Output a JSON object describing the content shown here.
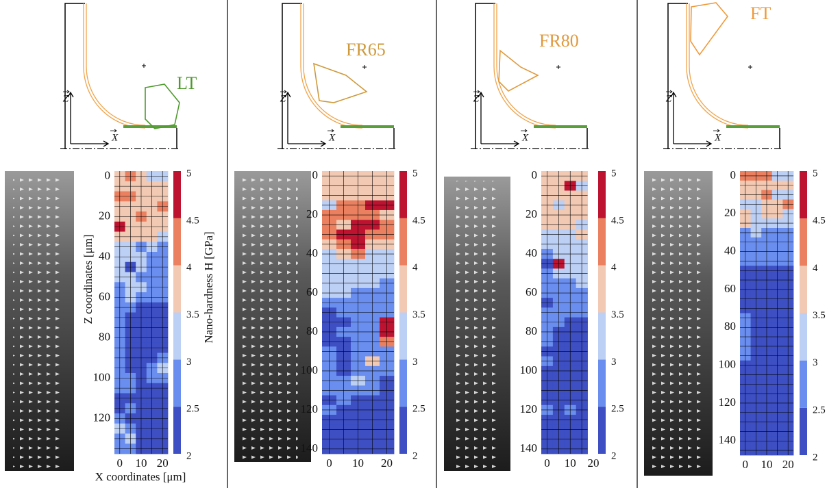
{
  "symbols": {
    "z": "Z",
    "x": "X"
  },
  "chart_data": [
    {
      "type": "heatmap",
      "tool_label": "LT",
      "label_color": "#4e9a2c",
      "ylabel": "Z coordinates [μm]",
      "xlabel": "X coordinates [μm]",
      "colorbar_label": "Nano-hardness H [GPa]",
      "x": [
        0,
        5,
        10,
        15,
        20
      ],
      "z": [
        0,
        5,
        10,
        15,
        20,
        25,
        30,
        35,
        40,
        45,
        50,
        55,
        60,
        65,
        70,
        75,
        80,
        85,
        90,
        95,
        100,
        105,
        110,
        115,
        120,
        125,
        130,
        135
      ],
      "values": [
        [
          3.7,
          4.2,
          3.7,
          3.2,
          3.2
        ],
        [
          3.7,
          3.7,
          3.7,
          3.7,
          3.7
        ],
        [
          4.2,
          4.2,
          3.7,
          3.7,
          3.7
        ],
        [
          3.7,
          3.7,
          3.7,
          3.7,
          4.2
        ],
        [
          3.7,
          3.7,
          4.2,
          3.7,
          3.7
        ],
        [
          4.7,
          3.7,
          3.7,
          3.7,
          3.7
        ],
        [
          3.7,
          3.7,
          3.7,
          3.7,
          3.2
        ],
        [
          3.2,
          3.2,
          2.7,
          3.2,
          2.7
        ],
        [
          3.2,
          3.2,
          3.2,
          2.7,
          2.7
        ],
        [
          3.2,
          2.2,
          3.2,
          2.7,
          2.7
        ],
        [
          3.2,
          3.2,
          2.7,
          2.7,
          2.7
        ],
        [
          2.7,
          3.2,
          3.2,
          2.7,
          2.7
        ],
        [
          2.7,
          3.2,
          2.7,
          2.7,
          2.7
        ],
        [
          2.7,
          2.7,
          2.2,
          2.2,
          2.2
        ],
        [
          2.7,
          2.2,
          2.2,
          2.2,
          2.2
        ],
        [
          2.7,
          2.2,
          2.2,
          2.2,
          2.2
        ],
        [
          2.7,
          2.2,
          2.2,
          2.2,
          2.2
        ],
        [
          2.7,
          2.2,
          2.2,
          2.2,
          2.2
        ],
        [
          2.7,
          2.2,
          2.2,
          2.2,
          2.7
        ],
        [
          2.7,
          2.2,
          2.2,
          2.7,
          3.2
        ],
        [
          2.7,
          2.7,
          2.2,
          2.7,
          2.7
        ],
        [
          2.7,
          2.7,
          2.2,
          2.2,
          2.2
        ],
        [
          2.2,
          2.2,
          2.2,
          2.2,
          2.2
        ],
        [
          2.2,
          2.7,
          2.2,
          2.2,
          2.2
        ],
        [
          2.7,
          2.2,
          2.2,
          2.2,
          2.2
        ],
        [
          3.2,
          2.7,
          2.2,
          2.2,
          2.2
        ],
        [
          2.7,
          3.2,
          2.2,
          2.2,
          2.2
        ],
        [
          2.7,
          2.7,
          2.2,
          2.2,
          2.2
        ]
      ],
      "xlim": [
        -2.5,
        22.5
      ],
      "ylim": [
        -2.5,
        137.5
      ],
      "xticks": [
        0,
        10,
        20
      ],
      "yticks": [
        0,
        20,
        40,
        60,
        80,
        100,
        120
      ],
      "colorbar": {
        "bounds": [
          2,
          2.5,
          3,
          3.5,
          4,
          4.5,
          5
        ],
        "colors": [
          "#3d4fc3",
          "#6a8eef",
          "#bccff4",
          "#f2c9b3",
          "#ea8060",
          "#bd1331"
        ],
        "ticks": [
          2,
          2.5,
          3,
          3.5,
          4,
          4.5,
          5
        ]
      }
    },
    {
      "type": "heatmap",
      "tool_label": "FR65",
      "label_color": "#cf9a3c",
      "x": [
        0,
        5,
        10,
        15,
        20
      ],
      "z": [
        0,
        5,
        10,
        15,
        20,
        25,
        30,
        35,
        40,
        45,
        50,
        55,
        60,
        65,
        70,
        75,
        80,
        85,
        90,
        95,
        100,
        105,
        110,
        115,
        120,
        125,
        130,
        135,
        140
      ],
      "values": [
        [
          3.7,
          3.7,
          3.7,
          3.7,
          3.7
        ],
        [
          3.7,
          3.7,
          3.7,
          3.7,
          3.7
        ],
        [
          3.7,
          3.7,
          3.7,
          3.7,
          3.7
        ],
        [
          3.2,
          4.2,
          4.2,
          4.7,
          4.7
        ],
        [
          4.2,
          4.2,
          4.2,
          4.2,
          3.7
        ],
        [
          4.2,
          3.7,
          4.7,
          4.7,
          4.2
        ],
        [
          4.2,
          4.7,
          4.7,
          4.2,
          4.2
        ],
        [
          3.7,
          4.2,
          4.7,
          3.7,
          3.7
        ],
        [
          3.2,
          3.7,
          4.2,
          3.2,
          3.2
        ],
        [
          3.2,
          3.2,
          3.2,
          3.2,
          3.2
        ],
        [
          3.2,
          3.2,
          3.2,
          3.2,
          3.2
        ],
        [
          3.2,
          3.2,
          3.2,
          3.2,
          2.7
        ],
        [
          3.2,
          3.2,
          2.7,
          2.7,
          2.7
        ],
        [
          2.7,
          2.7,
          2.7,
          2.7,
          2.7
        ],
        [
          2.2,
          2.7,
          2.7,
          2.7,
          2.7
        ],
        [
          2.2,
          2.2,
          2.7,
          2.7,
          4.7
        ],
        [
          2.2,
          2.7,
          2.7,
          2.7,
          4.7
        ],
        [
          2.2,
          2.2,
          2.7,
          2.7,
          4.2
        ],
        [
          2.7,
          2.2,
          2.7,
          2.7,
          2.7
        ],
        [
          2.7,
          2.2,
          2.7,
          3.7,
          2.7
        ],
        [
          2.7,
          2.2,
          2.7,
          2.7,
          2.7
        ],
        [
          2.7,
          2.7,
          3.2,
          2.7,
          2.2
        ],
        [
          2.7,
          2.7,
          2.7,
          2.7,
          2.2
        ],
        [
          2.2,
          2.7,
          2.2,
          2.2,
          2.2
        ],
        [
          2.7,
          2.2,
          2.2,
          2.2,
          2.2
        ],
        [
          2.2,
          2.2,
          2.2,
          2.2,
          2.2
        ],
        [
          2.2,
          2.2,
          2.2,
          2.2,
          2.2
        ],
        [
          2.2,
          2.2,
          2.2,
          2.2,
          2.2
        ],
        [
          2.2,
          2.2,
          2.2,
          2.2,
          2.2
        ]
      ],
      "xlim": [
        -2.5,
        22.5
      ],
      "ylim": [
        -2.5,
        142.5
      ],
      "xticks": [
        0,
        10,
        20
      ],
      "yticks": [
        0,
        20,
        40,
        60,
        80,
        100,
        120,
        140
      ],
      "colorbar": {
        "bounds": [
          2,
          2.5,
          3,
          3.5,
          4,
          4.5,
          5
        ],
        "colors": [
          "#3d4fc3",
          "#6a8eef",
          "#bccff4",
          "#f2c9b3",
          "#ea8060",
          "#bd1331"
        ],
        "ticks": [
          2,
          2.5,
          3,
          3.5,
          4,
          4.5,
          5
        ]
      }
    },
    {
      "type": "heatmap",
      "tool_label": "FR80",
      "label_color": "#e0993c",
      "x": [
        0,
        5,
        10,
        15
      ],
      "z": [
        0,
        5,
        10,
        15,
        20,
        25,
        30,
        35,
        40,
        45,
        50,
        55,
        60,
        65,
        70,
        75,
        80,
        85,
        90,
        95,
        100,
        105,
        110,
        115,
        120,
        125,
        130,
        135,
        140
      ],
      "values": [
        [
          3.7,
          3.7,
          3.7,
          3.7
        ],
        [
          3.7,
          3.7,
          4.7,
          3.2
        ],
        [
          3.7,
          3.7,
          3.7,
          3.7
        ],
        [
          3.7,
          3.2,
          3.7,
          3.7
        ],
        [
          3.7,
          3.7,
          3.7,
          3.7
        ],
        [
          3.7,
          3.7,
          3.7,
          3.2
        ],
        [
          3.2,
          3.2,
          3.2,
          3.7
        ],
        [
          3.2,
          3.2,
          3.2,
          3.2
        ],
        [
          2.7,
          3.2,
          3.2,
          3.2
        ],
        [
          2.2,
          4.7,
          3.2,
          3.2
        ],
        [
          2.7,
          3.2,
          3.2,
          3.2
        ],
        [
          2.7,
          2.7,
          2.7,
          3.2
        ],
        [
          2.7,
          2.7,
          2.7,
          2.7
        ],
        [
          2.2,
          2.7,
          2.7,
          2.7
        ],
        [
          2.7,
          2.7,
          2.7,
          2.7
        ],
        [
          2.7,
          2.7,
          2.2,
          2.2
        ],
        [
          2.7,
          2.2,
          2.2,
          2.2
        ],
        [
          2.7,
          2.2,
          2.2,
          2.2
        ],
        [
          2.2,
          2.2,
          2.2,
          2.2
        ],
        [
          2.7,
          2.2,
          2.2,
          2.2
        ],
        [
          2.2,
          2.2,
          2.2,
          2.2
        ],
        [
          2.2,
          2.2,
          2.2,
          2.2
        ],
        [
          2.2,
          2.2,
          2.2,
          2.2
        ],
        [
          2.2,
          2.2,
          2.2,
          2.2
        ],
        [
          2.7,
          2.2,
          2.7,
          2.2
        ],
        [
          2.2,
          2.2,
          2.2,
          2.2
        ],
        [
          2.2,
          2.2,
          2.2,
          2.2
        ],
        [
          2.2,
          2.2,
          2.2,
          2.2
        ],
        [
          2.2,
          2.2,
          2.2,
          2.2
        ]
      ],
      "xlim": [
        -2.5,
        20
      ],
      "ylim": [
        -2.5,
        142.5
      ],
      "xticks": [
        0,
        10,
        20
      ],
      "yticks": [
        0,
        20,
        40,
        60,
        80,
        100,
        120,
        140
      ],
      "colorbar": {
        "bounds": [
          2,
          2.5,
          3,
          3.5,
          4,
          4.5,
          5
        ],
        "colors": [
          "#3d4fc3",
          "#6a8eef",
          "#bccff4",
          "#f2c9b3",
          "#ea8060",
          "#bd1331"
        ],
        "ticks": [
          2,
          2.5,
          3,
          3.5,
          4,
          4.5,
          5
        ]
      }
    },
    {
      "type": "heatmap",
      "tool_label": "FT",
      "label_color": "#f09a3a",
      "x": [
        0,
        5,
        10,
        15,
        20
      ],
      "z": [
        0,
        5,
        10,
        15,
        20,
        25,
        30,
        35,
        40,
        45,
        50,
        55,
        60,
        65,
        70,
        75,
        80,
        85,
        90,
        95,
        100,
        105,
        110,
        115,
        120,
        125,
        130,
        135,
        140,
        145
      ],
      "values": [
        [
          4.2,
          4.2,
          4.2,
          3.2,
          3.2
        ],
        [
          3.7,
          3.7,
          3.7,
          3.7,
          3.7
        ],
        [
          3.7,
          3.7,
          4.2,
          3.2,
          3.2
        ],
        [
          3.2,
          3.2,
          3.7,
          3.7,
          4.2
        ],
        [
          3.7,
          3.2,
          3.7,
          3.7,
          3.2
        ],
        [
          3.7,
          3.2,
          3.2,
          3.2,
          3.2
        ],
        [
          2.7,
          3.2,
          2.7,
          2.7,
          2.7
        ],
        [
          2.7,
          2.7,
          2.7,
          2.7,
          2.7
        ],
        [
          2.7,
          2.7,
          2.7,
          2.7,
          2.7
        ],
        [
          2.7,
          2.7,
          2.7,
          2.7,
          2.7
        ],
        [
          2.2,
          2.2,
          2.2,
          2.2,
          2.2
        ],
        [
          2.2,
          2.2,
          2.2,
          2.2,
          2.2
        ],
        [
          2.2,
          2.2,
          2.2,
          2.2,
          2.2
        ],
        [
          2.2,
          2.2,
          2.2,
          2.2,
          2.2
        ],
        [
          2.2,
          2.2,
          2.2,
          2.2,
          2.2
        ],
        [
          2.7,
          2.2,
          2.2,
          2.2,
          2.2
        ],
        [
          2.7,
          2.2,
          2.2,
          2.2,
          2.2
        ],
        [
          2.7,
          2.2,
          2.2,
          2.2,
          2.2
        ],
        [
          2.7,
          2.2,
          2.2,
          2.2,
          2.2
        ],
        [
          2.7,
          2.2,
          2.2,
          2.2,
          2.2
        ],
        [
          2.2,
          2.2,
          2.2,
          2.2,
          2.2
        ],
        [
          2.2,
          2.2,
          2.2,
          2.2,
          2.2
        ],
        [
          2.2,
          2.2,
          2.2,
          2.2,
          2.2
        ],
        [
          2.2,
          2.2,
          2.2,
          2.2,
          2.2
        ],
        [
          2.2,
          2.2,
          2.2,
          2.2,
          2.2
        ],
        [
          2.2,
          2.2,
          2.2,
          2.2,
          2.2
        ],
        [
          2.2,
          2.2,
          2.2,
          2.2,
          2.2
        ],
        [
          2.2,
          2.2,
          2.2,
          2.2,
          2.2
        ],
        [
          2.2,
          2.2,
          2.2,
          2.2,
          2.2
        ],
        [
          2.2,
          2.2,
          2.2,
          2.2,
          2.2
        ]
      ],
      "xlim": [
        -2.5,
        22.5
      ],
      "ylim": [
        -2.5,
        147.5
      ],
      "xticks": [
        0,
        10,
        20
      ],
      "yticks": [
        0,
        20,
        40,
        60,
        80,
        100,
        120,
        140
      ],
      "colorbar": {
        "bounds": [
          2,
          2.5,
          3,
          3.5,
          4,
          4.5,
          5
        ],
        "colors": [
          "#3d4fc3",
          "#6a8eef",
          "#bccff4",
          "#f2c9b3",
          "#ea8060",
          "#bd1331"
        ],
        "ticks": [
          2,
          2.5,
          3,
          3.5,
          4,
          4.5,
          5
        ]
      }
    }
  ]
}
